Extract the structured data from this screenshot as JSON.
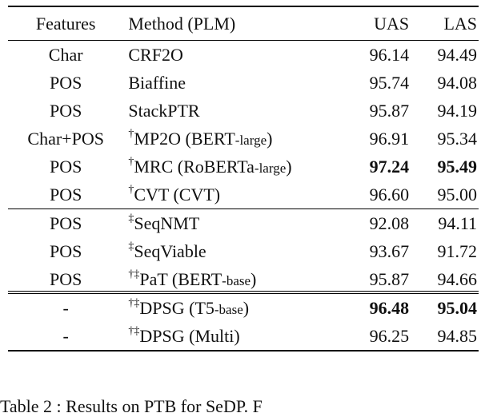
{
  "headers": {
    "features": "Features",
    "method": "Method (PLM)",
    "uas": "UAS",
    "las": "LAS"
  },
  "groups": [
    [
      {
        "features": "Char",
        "mark": "",
        "method": "CRF2O",
        "plm": "",
        "uas": "96.14",
        "las": "94.49"
      },
      {
        "features": "POS",
        "mark": "",
        "method": "Biaffine",
        "plm": "",
        "uas": "95.74",
        "las": "94.08"
      },
      {
        "features": "POS",
        "mark": "",
        "method": "StackPTR",
        "plm": "",
        "uas": "95.87",
        "las": "94.19"
      },
      {
        "features": "Char+POS",
        "mark": "†",
        "method": "MP2O (BERT",
        "plm": "-large",
        "suffix": ")",
        "uas": "96.91",
        "las": "95.34"
      },
      {
        "features": "POS",
        "mark": "†",
        "method": "MRC (RoBERTa",
        "plm": "-large",
        "suffix": ")",
        "uas": "97.24",
        "las": "95.49",
        "bold": true
      },
      {
        "features": "POS",
        "mark": "†",
        "method": "CVT (CVT)",
        "plm": "",
        "uas": "96.60",
        "las": "95.00"
      }
    ],
    [
      {
        "features": "POS",
        "mark": "‡",
        "method": "SeqNMT",
        "plm": "",
        "uas": "92.08",
        "las": "94.11"
      },
      {
        "features": "POS",
        "mark": "‡",
        "method": "SeqViable",
        "plm": "",
        "uas": "93.67",
        "las": "91.72"
      },
      {
        "features": "POS",
        "mark": "†‡",
        "method": "PaT (BERT",
        "plm": "-base",
        "suffix": ")",
        "uas": "95.87",
        "las": "94.66"
      }
    ],
    [
      {
        "features": "-",
        "mark": "†‡",
        "method": "DPSG (T5",
        "plm": "-base",
        "suffix": ")",
        "uas": "96.48",
        "las": "95.04",
        "bold": true
      },
      {
        "features": "-",
        "mark": "†‡",
        "method": "DPSG (Multi)",
        "plm": "",
        "uas": "96.25",
        "las": "94.85"
      }
    ]
  ],
  "caption": "Table 2 : Results on PTB for SeDP. F"
}
